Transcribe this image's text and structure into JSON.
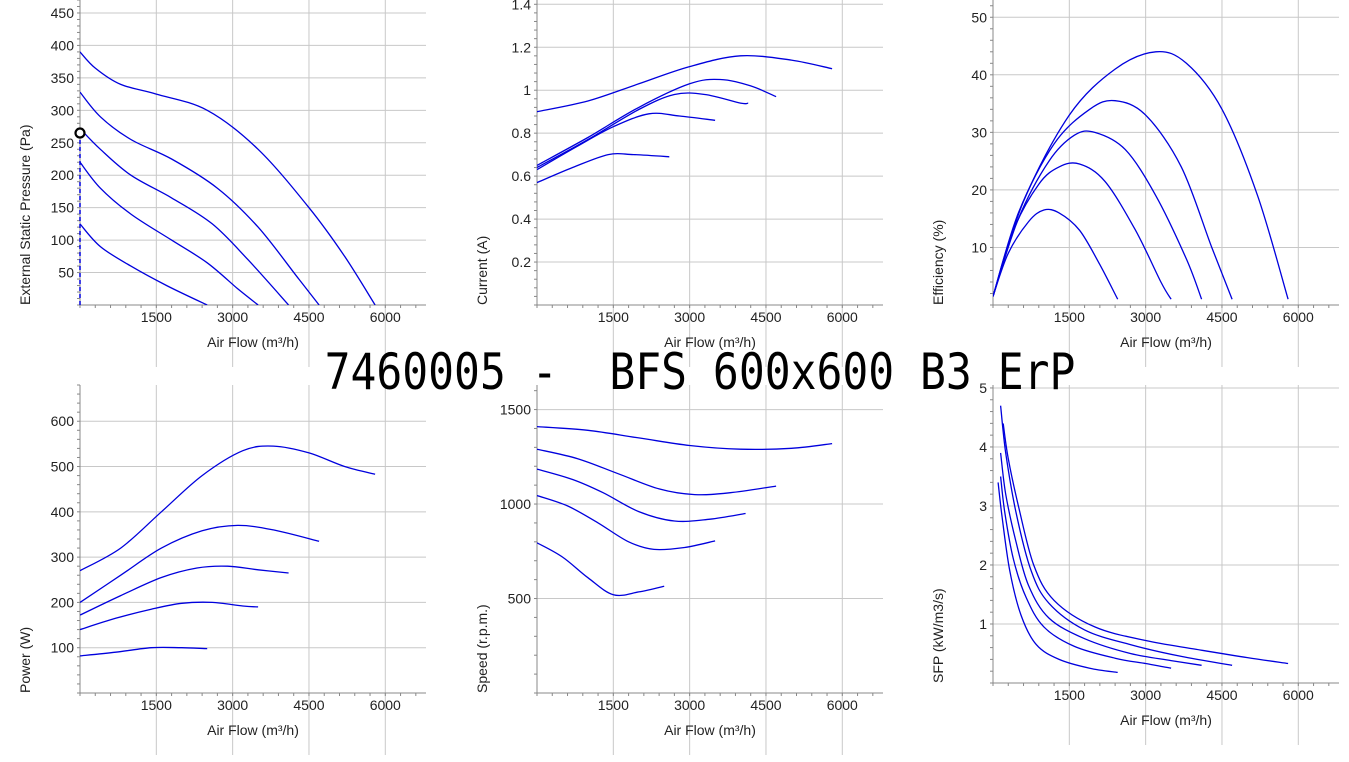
{
  "title": "7460005 -  BFS 600x600 B3 ErP",
  "colors": {
    "curve": "#0000dd",
    "grid": "#c8c8c8",
    "axis": "#888888",
    "marker": "#000000"
  },
  "chart_data": [
    {
      "id": "pressure",
      "type": "line",
      "xlabel": "Air Flow (m³/h)",
      "ylabel": "External Static Pressure (Pa)",
      "xlim": [
        0,
        6800
      ],
      "ylim": [
        0,
        470
      ],
      "xticks": [
        1500,
        3000,
        4500,
        6000
      ],
      "yticks": [
        50,
        100,
        150,
        200,
        250,
        300,
        350,
        400,
        450
      ],
      "series": [
        {
          "points": [
            [
              0,
              390
            ],
            [
              300,
              365
            ],
            [
              800,
              340
            ],
            [
              1500,
              325
            ],
            [
              2500,
              300
            ],
            [
              3500,
              240
            ],
            [
              4500,
              150
            ],
            [
              5200,
              75
            ],
            [
              5800,
              0
            ]
          ]
        },
        {
          "points": [
            [
              0,
              328
            ],
            [
              400,
              290
            ],
            [
              1000,
              255
            ],
            [
              1800,
              225
            ],
            [
              2700,
              180
            ],
            [
              3500,
              120
            ],
            [
              4300,
              40
            ],
            [
              4700,
              0
            ]
          ]
        },
        {
          "points": [
            [
              0,
              272
            ],
            [
              400,
              240
            ],
            [
              1000,
              200
            ],
            [
              1800,
              165
            ],
            [
              2600,
              125
            ],
            [
              3300,
              70
            ],
            [
              4100,
              0
            ]
          ]
        },
        {
          "points": [
            [
              0,
              220
            ],
            [
              400,
              180
            ],
            [
              1000,
              140
            ],
            [
              1800,
              100
            ],
            [
              2500,
              65
            ],
            [
              3100,
              25
            ],
            [
              3500,
              0
            ]
          ]
        },
        {
          "points": [
            [
              0,
              125
            ],
            [
              400,
              90
            ],
            [
              1000,
              60
            ],
            [
              1700,
              30
            ],
            [
              2500,
              0
            ]
          ]
        }
      ],
      "marker": [
        0,
        265
      ]
    },
    {
      "id": "current",
      "type": "line",
      "xlabel": "Air Flow (m³/h)",
      "ylabel": "Current (A)",
      "xlim": [
        0,
        6800
      ],
      "ylim": [
        0,
        1.42
      ],
      "xticks": [
        1500,
        3000,
        4500,
        6000
      ],
      "yticks": [
        0.2,
        0.4,
        0.6,
        0.8,
        1,
        1.2,
        1.4
      ],
      "series": [
        {
          "points": [
            [
              0,
              0.9
            ],
            [
              1000,
              0.95
            ],
            [
              2000,
              1.03
            ],
            [
              3000,
              1.11
            ],
            [
              4000,
              1.16
            ],
            [
              5000,
              1.14
            ],
            [
              5800,
              1.1
            ]
          ]
        },
        {
          "points": [
            [
              0,
              0.65
            ],
            [
              1000,
              0.78
            ],
            [
              2000,
              0.92
            ],
            [
              3000,
              1.03
            ],
            [
              3600,
              1.05
            ],
            [
              4200,
              1.02
            ],
            [
              4700,
              0.97
            ]
          ]
        },
        {
          "points": [
            [
              0,
              0.64
            ],
            [
              1000,
              0.77
            ],
            [
              2000,
              0.91
            ],
            [
              2700,
              0.98
            ],
            [
              3300,
              0.98
            ],
            [
              4000,
              0.94
            ],
            [
              4150,
              0.94
            ]
          ]
        },
        {
          "points": [
            [
              0,
              0.63
            ],
            [
              800,
              0.74
            ],
            [
              1500,
              0.83
            ],
            [
              2200,
              0.89
            ],
            [
              2800,
              0.88
            ],
            [
              3500,
              0.86
            ]
          ]
        },
        {
          "points": [
            [
              0,
              0.57
            ],
            [
              700,
              0.64
            ],
            [
              1400,
              0.7
            ],
            [
              1900,
              0.7
            ],
            [
              2600,
              0.69
            ]
          ]
        }
      ]
    },
    {
      "id": "efficiency",
      "type": "line",
      "xlabel": "Air Flow (m³/h)",
      "ylabel": "Efficiency (%)",
      "xlim": [
        0,
        6800
      ],
      "ylim": [
        0,
        53
      ],
      "xticks": [
        1500,
        3000,
        4500,
        6000
      ],
      "yticks": [
        10,
        20,
        30,
        40,
        50
      ],
      "series": [
        {
          "points": [
            [
              0,
              1.5
            ],
            [
              600,
              18
            ],
            [
              1500,
              33
            ],
            [
              2400,
              41
            ],
            [
              3200,
              44
            ],
            [
              3800,
              42
            ],
            [
              4500,
              34
            ],
            [
              5200,
              19
            ],
            [
              5800,
              1
            ]
          ]
        },
        {
          "points": [
            [
              0,
              1.5
            ],
            [
              500,
              16
            ],
            [
              1200,
              28
            ],
            [
              1900,
              34
            ],
            [
              2400,
              35.5
            ],
            [
              3000,
              33
            ],
            [
              3700,
              24
            ],
            [
              4300,
              10
            ],
            [
              4700,
              1
            ]
          ]
        },
        {
          "points": [
            [
              0,
              1.5
            ],
            [
              500,
              15
            ],
            [
              1100,
              25
            ],
            [
              1600,
              29.5
            ],
            [
              2000,
              30
            ],
            [
              2600,
              27
            ],
            [
              3200,
              19
            ],
            [
              3800,
              8
            ],
            [
              4100,
              1
            ]
          ]
        },
        {
          "points": [
            [
              0,
              1.5
            ],
            [
              400,
              13
            ],
            [
              900,
              21
            ],
            [
              1300,
              24
            ],
            [
              1700,
              24.5
            ],
            [
              2200,
              21.5
            ],
            [
              2800,
              13
            ],
            [
              3300,
              4
            ],
            [
              3500,
              1
            ]
          ]
        },
        {
          "points": [
            [
              0,
              1.5
            ],
            [
              300,
              9
            ],
            [
              700,
              14.5
            ],
            [
              1000,
              16.5
            ],
            [
              1300,
              16
            ],
            [
              1700,
              13
            ],
            [
              2100,
              7
            ],
            [
              2450,
              1
            ]
          ]
        }
      ]
    },
    {
      "id": "power",
      "type": "line",
      "xlabel": "Air Flow (m³/h)",
      "ylabel": "Power (W)",
      "xlim": [
        0,
        6800
      ],
      "ylim": [
        0,
        680
      ],
      "xticks": [
        1500,
        3000,
        4500,
        6000
      ],
      "yticks": [
        100,
        200,
        300,
        400,
        500,
        600
      ],
      "series": [
        {
          "points": [
            [
              0,
              270
            ],
            [
              800,
              320
            ],
            [
              1600,
              400
            ],
            [
              2400,
              480
            ],
            [
              3200,
              535
            ],
            [
              3800,
              545
            ],
            [
              4500,
              530
            ],
            [
              5200,
              500
            ],
            [
              5800,
              483
            ]
          ]
        },
        {
          "points": [
            [
              0,
              200
            ],
            [
              800,
              260
            ],
            [
              1600,
              320
            ],
            [
              2400,
              358
            ],
            [
              3100,
              370
            ],
            [
              3800,
              360
            ],
            [
              4700,
              335
            ]
          ]
        },
        {
          "points": [
            [
              0,
              172
            ],
            [
              800,
              215
            ],
            [
              1600,
              255
            ],
            [
              2300,
              276
            ],
            [
              2900,
              280
            ],
            [
              3500,
              272
            ],
            [
              4100,
              265
            ]
          ]
        },
        {
          "points": [
            [
              0,
              140
            ],
            [
              700,
              165
            ],
            [
              1400,
              185
            ],
            [
              2000,
              198
            ],
            [
              2600,
              200
            ],
            [
              3200,
              192
            ],
            [
              3500,
              190
            ]
          ]
        },
        {
          "points": [
            [
              0,
              82
            ],
            [
              700,
              90
            ],
            [
              1400,
              100
            ],
            [
              2000,
              100
            ],
            [
              2500,
              98
            ]
          ]
        }
      ]
    },
    {
      "id": "speed",
      "type": "line",
      "xlabel": "Air Flow (m³/h)",
      "ylabel": "Speed (r.p.m.)",
      "xlim": [
        0,
        6800
      ],
      "ylim": [
        0,
        1630
      ],
      "xticks": [
        1500,
        3000,
        4500,
        6000
      ],
      "yticks": [
        500,
        1000,
        1500
      ],
      "series": [
        {
          "points": [
            [
              0,
              1410
            ],
            [
              1000,
              1390
            ],
            [
              2000,
              1350
            ],
            [
              3000,
              1310
            ],
            [
              4000,
              1290
            ],
            [
              5000,
              1295
            ],
            [
              5800,
              1320
            ]
          ]
        },
        {
          "points": [
            [
              0,
              1290
            ],
            [
              800,
              1240
            ],
            [
              1600,
              1160
            ],
            [
              2400,
              1080
            ],
            [
              3100,
              1050
            ],
            [
              3800,
              1060
            ],
            [
              4700,
              1095
            ]
          ]
        },
        {
          "points": [
            [
              0,
              1185
            ],
            [
              700,
              1130
            ],
            [
              1300,
              1060
            ],
            [
              2000,
              960
            ],
            [
              2700,
              910
            ],
            [
              3400,
              920
            ],
            [
              4100,
              950
            ]
          ]
        },
        {
          "points": [
            [
              0,
              1045
            ],
            [
              600,
              990
            ],
            [
              1200,
              900
            ],
            [
              1800,
              800
            ],
            [
              2300,
              760
            ],
            [
              2900,
              770
            ],
            [
              3500,
              805
            ]
          ]
        },
        {
          "points": [
            [
              0,
              795
            ],
            [
              500,
              720
            ],
            [
              1000,
              610
            ],
            [
              1500,
              520
            ],
            [
              2000,
              535
            ],
            [
              2500,
              565
            ]
          ]
        }
      ]
    },
    {
      "id": "sfp",
      "type": "line",
      "xlabel": "Air Flow (m³/h)",
      "ylabel": "SFP (kW/m3/s)",
      "xlim": [
        0,
        6800
      ],
      "ylim": [
        0,
        5.05
      ],
      "xticks": [
        1500,
        3000,
        4500,
        6000
      ],
      "yticks": [
        1,
        2,
        3,
        4,
        5
      ],
      "series": [
        {
          "points": [
            [
              200,
              4.4
            ],
            [
              300,
              3.8
            ],
            [
              500,
              3.0
            ],
            [
              800,
              2.0
            ],
            [
              1200,
              1.4
            ],
            [
              2000,
              0.95
            ],
            [
              3000,
              0.72
            ],
            [
              4000,
              0.57
            ],
            [
              5000,
              0.43
            ],
            [
              5800,
              0.33
            ]
          ]
        },
        {
          "points": [
            [
              150,
              4.7
            ],
            [
              250,
              3.9
            ],
            [
              450,
              2.9
            ],
            [
              750,
              1.9
            ],
            [
              1100,
              1.35
            ],
            [
              1800,
              0.9
            ],
            [
              2700,
              0.65
            ],
            [
              3700,
              0.45
            ],
            [
              4700,
              0.3
            ]
          ]
        },
        {
          "points": [
            [
              150,
              3.9
            ],
            [
              250,
              3.2
            ],
            [
              450,
              2.4
            ],
            [
              700,
              1.65
            ],
            [
              1100,
              1.1
            ],
            [
              1800,
              0.75
            ],
            [
              2700,
              0.5
            ],
            [
              3500,
              0.38
            ],
            [
              4100,
              0.3
            ]
          ]
        },
        {
          "points": [
            [
              150,
              3.5
            ],
            [
              230,
              2.9
            ],
            [
              400,
              2.1
            ],
            [
              650,
              1.45
            ],
            [
              1000,
              0.95
            ],
            [
              1600,
              0.62
            ],
            [
              2400,
              0.42
            ],
            [
              3000,
              0.33
            ],
            [
              3500,
              0.25
            ]
          ]
        },
        {
          "points": [
            [
              100,
              3.4
            ],
            [
              180,
              2.8
            ],
            [
              330,
              1.9
            ],
            [
              550,
              1.15
            ],
            [
              850,
              0.65
            ],
            [
              1300,
              0.4
            ],
            [
              1900,
              0.25
            ],
            [
              2450,
              0.18
            ]
          ]
        }
      ]
    }
  ]
}
